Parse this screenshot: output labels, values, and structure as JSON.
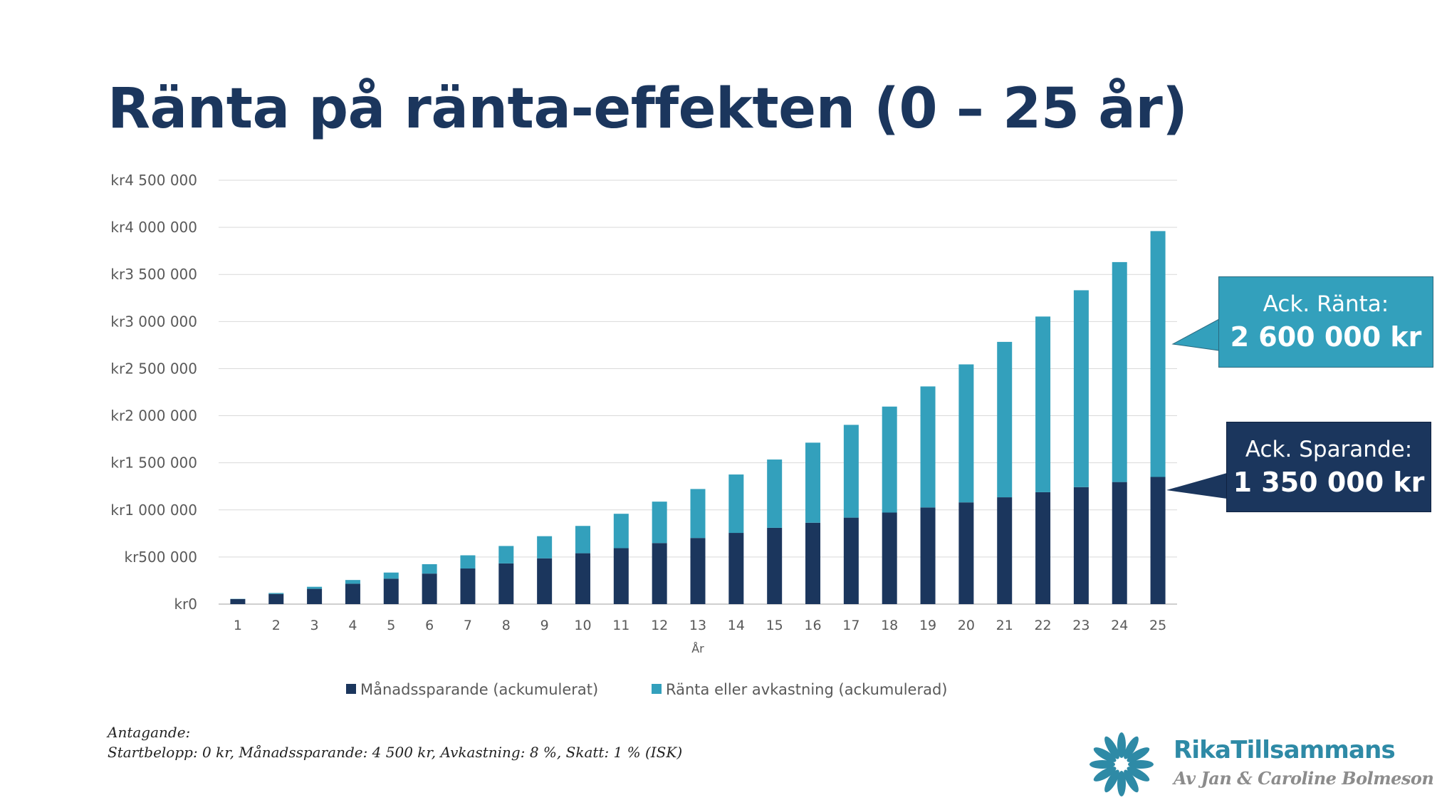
{
  "title": "Ränta på ränta-effekten (0 – 25 år)",
  "colors": {
    "savings": "#1b365d",
    "interest": "#33a0bc",
    "grid": "#d9d9d9",
    "title": "#1b365d"
  },
  "chart_data": {
    "type": "bar",
    "stacked": true,
    "title": "",
    "xlabel": "År",
    "ylabel": "",
    "ylim": [
      0,
      4500000
    ],
    "y_ticks": [
      0,
      500000,
      1000000,
      1500000,
      2000000,
      2500000,
      3000000,
      3500000,
      4000000,
      4500000
    ],
    "y_tick_labels": [
      "kr0",
      "kr500 000",
      "kr1 000 000",
      "kr1 500 000",
      "kr2 000 000",
      "kr2 500 000",
      "kr3 000 000",
      "kr3 500 000",
      "kr4 000 000",
      "kr4 500 000"
    ],
    "grid": true,
    "legend_position": "bottom",
    "categories": [
      "1",
      "2",
      "3",
      "4",
      "5",
      "6",
      "7",
      "8",
      "9",
      "10",
      "11",
      "12",
      "13",
      "14",
      "15",
      "16",
      "17",
      "18",
      "19",
      "20",
      "21",
      "22",
      "23",
      "24",
      "25"
    ],
    "series": [
      {
        "name": "Månadssparande (ackumulerat)",
        "color": "#1b365d",
        "values": [
          54000,
          108000,
          162000,
          216000,
          270000,
          324000,
          378000,
          432000,
          486000,
          540000,
          594000,
          648000,
          702000,
          756000,
          810000,
          864000,
          918000,
          972000,
          1026000,
          1080000,
          1134000,
          1188000,
          1242000,
          1296000,
          1350000
        ]
      },
      {
        "name": "Ränta eller avkastning (ackumulerad)",
        "color": "#33a0bc",
        "values": [
          2000,
          10000,
          22000,
          40000,
          65000,
          100000,
          140000,
          185000,
          235000,
          290000,
          365000,
          440000,
          520000,
          620000,
          725000,
          850000,
          985000,
          1125000,
          1285000,
          1465000,
          1650000,
          1865000,
          2090000,
          2335000,
          2610000
        ]
      }
    ],
    "annotations": [
      {
        "label": "Ack. Ränta:",
        "value": "2 600 000 kr",
        "series": "interest"
      },
      {
        "label": "Ack. Sparande:",
        "value": "1 350 000 kr",
        "series": "savings"
      }
    ]
  },
  "assumption": {
    "heading": "Antagande:",
    "text": "Startbelopp: 0 kr, Månadssparande: 4 500 kr, Avkastning: 8 %, Skatt: 1 % (ISK)"
  },
  "logo": {
    "name": "RikaTillsammans",
    "tagline": "Av Jan & Caroline Bolmeson",
    "color": "#2e8aa6"
  }
}
